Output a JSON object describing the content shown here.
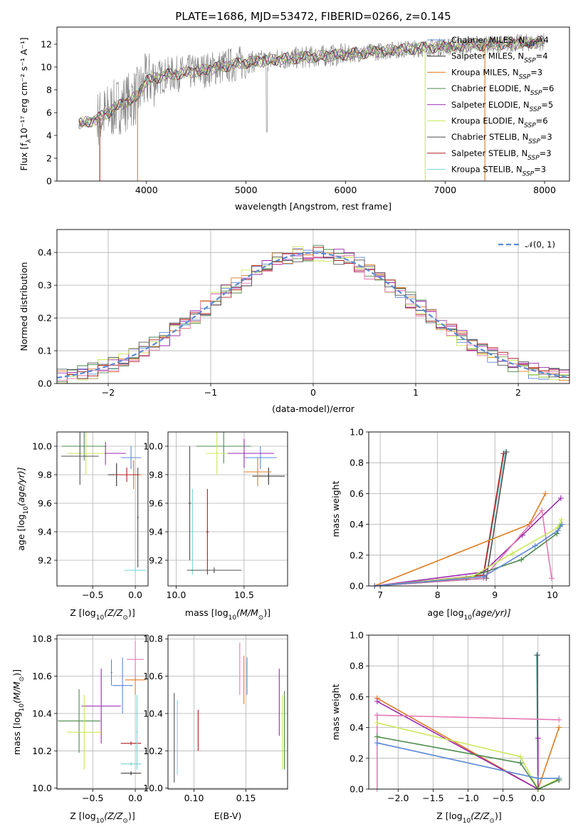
{
  "title": "PLATE=1686, MJD=53472, FIBERID=0266, z=0.145",
  "colors": {
    "Chabrier MILES": "#5a86d6",
    "Salpeter MILES": "#2a2a2a",
    "Kroupa MILES": "#e07b20",
    "Chabrier ELODIE": "#4c8a4c",
    "Salpeter ELODIE": "#9a2ab0",
    "Kroupa ELODIE": "#c9e85a",
    "Chabrier STELIB": "#505050",
    "Salpeter STELIB": "#b01c1c",
    "Kroupa STELIB": "#76d4d4",
    "Kroupa extra": "#e678b4"
  },
  "chart_data": [
    {
      "type": "line",
      "xlabel": "wavelength [Angstrom, rest frame]",
      "ylabel": "Flux [f",
      "xlim": [
        3100,
        8250
      ],
      "ylim": [
        0,
        13.5
      ],
      "xticks": [
        4000,
        5000,
        6000,
        7000,
        8000
      ],
      "yticks": [
        0,
        2,
        4,
        6,
        8,
        10,
        12
      ],
      "legend_position": "top-right",
      "legend": [
        {
          "name": "Chabrier MILES",
          "nssp": "4"
        },
        {
          "name": "Salpeter MILES",
          "nssp": "4"
        },
        {
          "name": "Kroupa MILES",
          "nssp": "3"
        },
        {
          "name": "Chabrier ELODIE",
          "nssp": "6"
        },
        {
          "name": "Salpeter ELODIE",
          "nssp": "5"
        },
        {
          "name": "Kroupa ELODIE",
          "nssp": "6"
        },
        {
          "name": "Chabrier STELIB",
          "nssp": "3"
        },
        {
          "name": "Salpeter STELIB",
          "nssp": "3"
        },
        {
          "name": "Kroupa STELIB",
          "nssp": "3"
        }
      ],
      "model_edges": [
        {
          "series": "Salpeter STELIB",
          "x": 3530
        },
        {
          "series": "Kroupa MILES",
          "x": 3910
        },
        {
          "series": "Kroupa ELODIE",
          "x": 6800
        },
        {
          "series": "Kroupa MILES",
          "x": 7400
        }
      ],
      "continuum": {
        "x": [
          3320,
          3500,
          3700,
          3900,
          4000,
          4200,
          4500,
          4800,
          5000,
          5500,
          6000,
          6500,
          7000,
          7500,
          8000
        ],
        "y": [
          5.0,
          5.4,
          6.5,
          7.4,
          8.8,
          9.3,
          9.6,
          10.1,
          10.4,
          10.8,
          11.1,
          11.5,
          11.8,
          12.0,
          12.2
        ]
      }
    },
    {
      "type": "line",
      "xlabel": "(data-model)/error",
      "ylabel": "Normed distribution",
      "xlim": [
        -2.5,
        2.5
      ],
      "ylim": [
        0,
        0.47
      ],
      "xticks": [
        -2,
        -1,
        0,
        1,
        2
      ],
      "yticks": [
        0.0,
        0.1,
        0.2,
        0.3,
        0.4
      ],
      "grid": true,
      "legend_position": "top-right",
      "legend": "𝒩(0, 1)",
      "curve": "normal(0,1) dashed",
      "bin_width": 0.1
    },
    {
      "type": "scatter",
      "xlabel": "Z [log",
      "ylabel": "age  [log",
      "xlim": [
        -0.92,
        0.15
      ],
      "ylim": [
        9.02,
        10.1
      ],
      "xticks": [
        -0.5,
        0.0
      ],
      "yticks": [
        9.2,
        9.4,
        9.6,
        9.8,
        10.0
      ],
      "grid": true,
      "points": [
        {
          "s": "Chabrier MILES",
          "x": -0.05,
          "y": 9.92,
          "ex": 0.12,
          "ey": 0.08
        },
        {
          "s": "Salpeter MILES",
          "x": -0.22,
          "y": 9.8,
          "ex": 0.1,
          "ey": 0.08
        },
        {
          "s": "Kroupa MILES",
          "x": -0.02,
          "y": 9.8,
          "ex": 0.1,
          "ey": 0.1
        },
        {
          "s": "Chabrier ELODIE",
          "x": -0.6,
          "y": 10.0,
          "ex": 0.26,
          "ey": 0.1
        },
        {
          "s": "Salpeter ELODIE",
          "x": -0.35,
          "y": 9.95,
          "ex": 0.24,
          "ey": 0.08
        },
        {
          "s": "Kroupa ELODIE",
          "x": -0.58,
          "y": 9.95,
          "ex": 0.22,
          "ey": 0.15
        },
        {
          "s": "Chabrier STELIB",
          "x": -0.65,
          "y": 9.93,
          "ex": 0.22,
          "ey": 0.2
        },
        {
          "s": "Salpeter STELIB",
          "x": -0.1,
          "y": 9.8,
          "ex": 0.15,
          "ey": 0.05
        },
        {
          "s": "Kroupa STELIB",
          "x": 0.0,
          "y": 9.13,
          "ex": 0.13,
          "ey": 0.02
        },
        {
          "s": "Chabrier STELIB",
          "x": 0.03,
          "y": 9.5,
          "ex": 0.01,
          "ey": 0.35
        }
      ]
    },
    {
      "type": "scatter",
      "xlabel": "mass [log",
      "ylabel": "",
      "xlim": [
        9.94,
        10.82
      ],
      "ylim": [
        9.02,
        10.1
      ],
      "xticks": [
        10.0,
        10.5
      ],
      "yticks": [
        9.2,
        9.4,
        9.6,
        9.8,
        10.0
      ],
      "grid": true,
      "points": [
        {
          "s": "Chabrier MILES",
          "x": 10.62,
          "y": 9.92,
          "ex": 0.12,
          "ey": 0.08
        },
        {
          "s": "Salpeter MILES",
          "x": 10.68,
          "y": 9.79,
          "ex": 0.12,
          "ey": 0.06
        },
        {
          "s": "Kroupa MILES",
          "x": 10.6,
          "y": 9.82,
          "ex": 0.1,
          "ey": 0.1
        },
        {
          "s": "Chabrier ELODIE",
          "x": 10.35,
          "y": 10.0,
          "ex": 0.2,
          "ey": 0.12
        },
        {
          "s": "Salpeter ELODIE",
          "x": 10.5,
          "y": 9.95,
          "ex": 0.22,
          "ey": 0.1
        },
        {
          "s": "Kroupa ELODIE",
          "x": 10.3,
          "y": 9.95,
          "ex": 0.08,
          "ey": 0.15
        },
        {
          "s": "Chabrier STELIB",
          "x": 10.1,
          "y": 9.6,
          "ex": 0.01,
          "ey": 0.4
        },
        {
          "s": "Salpeter STELIB",
          "x": 10.23,
          "y": 9.4,
          "ex": 0.01,
          "ey": 0.3
        },
        {
          "s": "Kroupa STELIB",
          "x": 10.12,
          "y": 9.4,
          "ex": 0.01,
          "ey": 0.3
        },
        {
          "s": "Chabrier STELIB",
          "x": 10.28,
          "y": 9.13,
          "ex": 0.2,
          "ey": 0.02
        }
      ]
    },
    {
      "type": "line",
      "xlabel": "age  [log",
      "ylabel": "mass weight",
      "xlim": [
        6.8,
        10.3
      ],
      "ylim": [
        0,
        1.0
      ],
      "xticks": [
        7,
        8,
        9,
        10
      ],
      "yticks": [
        0.0,
        0.2,
        0.4,
        0.6,
        0.8,
        1.0
      ],
      "grid": true,
      "series": [
        {
          "s": "Kroupa STELIB",
          "x": [
            6.9,
            8.8,
            9.18
          ],
          "y": [
            0.0,
            0.06,
            0.87
          ]
        },
        {
          "s": "Salpeter STELIB",
          "x": [
            6.9,
            8.8,
            9.15
          ],
          "y": [
            0.0,
            0.07,
            0.86
          ]
        },
        {
          "s": "Chabrier STELIB",
          "x": [
            6.9,
            8.85,
            9.2
          ],
          "y": [
            0.0,
            0.05,
            0.87
          ]
        },
        {
          "s": "Kroupa MILES",
          "x": [
            6.9,
            9.6,
            9.88
          ],
          "y": [
            0.0,
            0.4,
            0.6
          ]
        },
        {
          "s": "Salpeter ELODIE",
          "x": [
            6.9,
            8.8,
            9.48,
            10.15
          ],
          "y": [
            0.0,
            0.09,
            0.33,
            0.57
          ]
        },
        {
          "s": "Kroupa extra",
          "x": [
            6.9,
            8.8,
            9.82,
            9.99
          ],
          "y": [
            0.0,
            0.05,
            0.49,
            0.05
          ]
        },
        {
          "s": "Chabrier ELODIE",
          "x": [
            6.9,
            8.5,
            9.46,
            10.08,
            10.14
          ],
          "y": [
            0.0,
            0.05,
            0.17,
            0.34,
            0.39
          ]
        },
        {
          "s": "Kroupa ELODIE",
          "x": [
            6.9,
            8.6,
            9.3,
            10.1,
            10.16
          ],
          "y": [
            0.0,
            0.06,
            0.21,
            0.38,
            0.43
          ]
        },
        {
          "s": "Chabrier MILES",
          "x": [
            6.9,
            8.8,
            9.7,
            10.1,
            10.17
          ],
          "y": [
            0.0,
            0.06,
            0.26,
            0.36,
            0.4
          ]
        }
      ]
    },
    {
      "type": "scatter",
      "xlabel": "Z [log",
      "ylabel": "mass [log",
      "xlim": [
        -0.92,
        0.15
      ],
      "ylim": [
        9.995,
        10.82
      ],
      "xticks": [
        -0.5,
        0.0
      ],
      "yticks": [
        10.0,
        10.2,
        10.4,
        10.6,
        10.8
      ],
      "grid": true,
      "points": [
        {
          "s": "Chabrier MILES",
          "x": -0.15,
          "y": 10.55,
          "ex": 0.12,
          "ey": 0.15
        },
        {
          "s": "Salpeter MILES",
          "x": -0.05,
          "y": 10.08,
          "ex": 0.12,
          "ey": 0.01
        },
        {
          "s": "Kroupa MILES",
          "x": 0.0,
          "y": 10.58,
          "ex": 0.12,
          "ey": 0.08
        },
        {
          "s": "Chabrier ELODIE",
          "x": -0.66,
          "y": 10.36,
          "ex": 0.25,
          "ey": 0.17
        },
        {
          "s": "Salpeter ELODIE",
          "x": -0.4,
          "y": 10.44,
          "ex": 0.23,
          "ey": 0.2
        },
        {
          "s": "Kroupa ELODIE",
          "x": -0.6,
          "y": 10.3,
          "ex": 0.2,
          "ey": 0.2
        },
        {
          "s": "Kroupa extra",
          "x": 0.0,
          "y": 10.69,
          "ex": 0.1,
          "ey": 0.1
        },
        {
          "s": "Salpeter STELIB",
          "x": -0.05,
          "y": 10.24,
          "ex": 0.12,
          "ey": 0.01
        },
        {
          "s": "Kroupa STELIB",
          "x": -0.05,
          "y": 10.13,
          "ex": 0.12,
          "ey": 0.01
        },
        {
          "s": "Chabrier MILES",
          "x": -0.28,
          "y": 10.62,
          "ex": 0.01,
          "ey": 0.07
        },
        {
          "s": "Kroupa STELIB",
          "x": 0.02,
          "y": 10.3,
          "ex": 0.01,
          "ey": 0.2
        }
      ]
    },
    {
      "type": "scatter",
      "xlabel": "E(B-V)",
      "ylabel": "",
      "xlim": [
        0.075,
        0.19
      ],
      "ylim": [
        9.995,
        10.82
      ],
      "xticks": [
        0.1,
        0.15
      ],
      "yticks": [
        10.0,
        10.2,
        10.4,
        10.6,
        10.8
      ],
      "grid": true,
      "points": [
        {
          "s": "Chabrier STELIB",
          "x": 0.081,
          "y": 10.27,
          "ey": 0.24
        },
        {
          "s": "Kroupa STELIB",
          "x": 0.084,
          "y": 10.27,
          "ey": 0.2
        },
        {
          "s": "Salpeter STELIB",
          "x": 0.104,
          "y": 10.31,
          "ey": 0.11
        },
        {
          "s": "Kroupa extra",
          "x": 0.144,
          "y": 10.64,
          "ey": 0.14
        },
        {
          "s": "Kroupa MILES",
          "x": 0.148,
          "y": 10.58,
          "ey": 0.13
        },
        {
          "s": "Chabrier MILES",
          "x": 0.151,
          "y": 10.6,
          "ey": 0.1
        },
        {
          "s": "Salpeter ELODIE",
          "x": 0.182,
          "y": 10.46,
          "ey": 0.18
        },
        {
          "s": "Kroupa ELODIE",
          "x": 0.185,
          "y": 10.3,
          "ey": 0.2
        },
        {
          "s": "Chabrier ELODIE",
          "x": 0.187,
          "y": 10.31,
          "ey": 0.21
        }
      ]
    },
    {
      "type": "line",
      "xlabel": "Z [log",
      "ylabel": "mass weight",
      "xlim": [
        -2.42,
        0.45
      ],
      "ylim": [
        0,
        1.0
      ],
      "xticks": [
        -2.0,
        -1.5,
        -1.0,
        -0.5,
        0.0
      ],
      "yticks": [
        0.0,
        0.2,
        0.4,
        0.6,
        0.8,
        1.0
      ],
      "grid": true,
      "series": [
        {
          "s": "Kroupa STELIB",
          "x": [
            -0.02,
            0.0,
            0.3
          ],
          "y": [
            0.87,
            0.0,
            0.06
          ]
        },
        {
          "s": "Chabrier STELIB",
          "x": [
            -0.01,
            0.0,
            0.3
          ],
          "y": [
            0.87,
            0.0,
            0.06
          ]
        },
        {
          "s": "Kroupa MILES",
          "x": [
            -2.3,
            0.0,
            0.3
          ],
          "y": [
            0.59,
            0.0,
            0.4
          ]
        },
        {
          "s": "Salpeter ELODIE",
          "x": [
            -2.3,
            0.0,
            0.0
          ],
          "y": [
            0.57,
            0.0,
            0.33
          ]
        },
        {
          "s": "Kroupa extra",
          "x": [
            -2.3,
            0.3
          ],
          "y": [
            0.48,
            0.45
          ]
        },
        {
          "s": "Kroupa extra",
          "x": [
            -2.3,
            -2.3
          ],
          "y": [
            0.0,
            0.48
          ]
        },
        {
          "s": "Kroupa ELODIE",
          "x": [
            -2.3,
            -0.25,
            0.0,
            0.3
          ],
          "y": [
            0.43,
            0.21,
            0.0,
            0.07
          ]
        },
        {
          "s": "Chabrier ELODIE",
          "x": [
            -2.3,
            -0.25,
            0.0,
            0.3
          ],
          "y": [
            0.34,
            0.17,
            0.0,
            0.06
          ]
        },
        {
          "s": "Chabrier MILES",
          "x": [
            -2.3,
            0.0,
            0.3
          ],
          "y": [
            0.3,
            0.07,
            0.07
          ]
        }
      ]
    }
  ],
  "labels": {
    "flux_unit": "10⁻¹⁷ erg cm⁻² s⁻¹ A⁻¹]",
    "nssp_prefix": "N",
    "nssp_sub": "SSP",
    "z_unit": "(Z/Z",
    "mass_unit": "(M/M",
    "age_unit": "(age/yr)]",
    "log_sub": "10",
    "sun": "⊙",
    "close": ")]",
    "lambda_sub": "λ"
  }
}
